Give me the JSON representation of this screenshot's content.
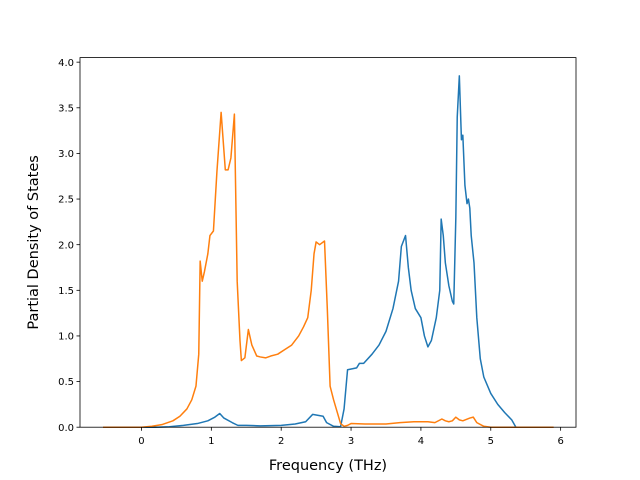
{
  "chart_data": {
    "type": "line",
    "title": "",
    "xlabel": "Frequency (THz)",
    "ylabel": "Partial Density of States",
    "xlim": [
      -0.88,
      6.22
    ],
    "ylim": [
      0.0,
      4.05
    ],
    "xticks": [
      0,
      1,
      2,
      3,
      4,
      5,
      6
    ],
    "yticks": [
      0.0,
      0.5,
      1.0,
      1.5,
      2.0,
      2.5,
      3.0,
      3.5,
      4.0
    ],
    "xtick_labels": [
      "0",
      "1",
      "2",
      "3",
      "4",
      "5",
      "6"
    ],
    "ytick_labels": [
      "0.0",
      "0.5",
      "1.0",
      "1.5",
      "2.0",
      "2.5",
      "3.0",
      "3.5",
      "4.0"
    ],
    "grid": false,
    "legend": false,
    "series": [
      {
        "color": "#1f77b4",
        "points": [
          [
            -0.55,
            0.0
          ],
          [
            0.2,
            0.0
          ],
          [
            0.4,
            0.005
          ],
          [
            0.6,
            0.02
          ],
          [
            0.8,
            0.04
          ],
          [
            0.95,
            0.07
          ],
          [
            1.05,
            0.11
          ],
          [
            1.12,
            0.15
          ],
          [
            1.18,
            0.1
          ],
          [
            1.3,
            0.05
          ],
          [
            1.38,
            0.02
          ],
          [
            1.5,
            0.02
          ],
          [
            1.7,
            0.015
          ],
          [
            2.0,
            0.02
          ],
          [
            2.2,
            0.035
          ],
          [
            2.35,
            0.06
          ],
          [
            2.45,
            0.14
          ],
          [
            2.6,
            0.12
          ],
          [
            2.65,
            0.05
          ],
          [
            2.75,
            0.01
          ],
          [
            2.85,
            0.005
          ],
          [
            2.9,
            0.2
          ],
          [
            2.95,
            0.63
          ],
          [
            3.02,
            0.64
          ],
          [
            3.08,
            0.65
          ],
          [
            3.12,
            0.7
          ],
          [
            3.18,
            0.7
          ],
          [
            3.3,
            0.8
          ],
          [
            3.4,
            0.9
          ],
          [
            3.5,
            1.05
          ],
          [
            3.6,
            1.3
          ],
          [
            3.68,
            1.6
          ],
          [
            3.72,
            1.98
          ],
          [
            3.78,
            2.1
          ],
          [
            3.82,
            1.75
          ],
          [
            3.86,
            1.5
          ],
          [
            3.92,
            1.3
          ],
          [
            4.0,
            1.2
          ],
          [
            4.05,
            1.0
          ],
          [
            4.1,
            0.88
          ],
          [
            4.15,
            0.95
          ],
          [
            4.22,
            1.2
          ],
          [
            4.27,
            1.5
          ],
          [
            4.29,
            2.28
          ],
          [
            4.32,
            2.1
          ],
          [
            4.35,
            1.8
          ],
          [
            4.4,
            1.55
          ],
          [
            4.45,
            1.38
          ],
          [
            4.47,
            1.35
          ],
          [
            4.5,
            2.3
          ],
          [
            4.52,
            3.4
          ],
          [
            4.55,
            3.85
          ],
          [
            4.58,
            3.15
          ],
          [
            4.6,
            3.2
          ],
          [
            4.63,
            2.65
          ],
          [
            4.66,
            2.45
          ],
          [
            4.68,
            2.5
          ],
          [
            4.7,
            2.4
          ],
          [
            4.72,
            2.1
          ],
          [
            4.76,
            1.8
          ],
          [
            4.8,
            1.2
          ],
          [
            4.85,
            0.75
          ],
          [
            4.9,
            0.55
          ],
          [
            5.0,
            0.37
          ],
          [
            5.1,
            0.25
          ],
          [
            5.2,
            0.16
          ],
          [
            5.3,
            0.08
          ],
          [
            5.36,
            0.0
          ],
          [
            5.45,
            0.0
          ]
        ]
      },
      {
        "color": "#ff7f0e",
        "points": [
          [
            -0.55,
            0.0
          ],
          [
            0.0,
            0.0
          ],
          [
            0.15,
            0.01
          ],
          [
            0.3,
            0.03
          ],
          [
            0.45,
            0.07
          ],
          [
            0.55,
            0.12
          ],
          [
            0.65,
            0.2
          ],
          [
            0.72,
            0.3
          ],
          [
            0.78,
            0.45
          ],
          [
            0.82,
            0.8
          ],
          [
            0.84,
            1.82
          ],
          [
            0.87,
            1.6
          ],
          [
            0.9,
            1.7
          ],
          [
            0.95,
            1.9
          ],
          [
            0.98,
            2.1
          ],
          [
            1.03,
            2.15
          ],
          [
            1.08,
            2.8
          ],
          [
            1.14,
            3.45
          ],
          [
            1.2,
            2.82
          ],
          [
            1.24,
            2.82
          ],
          [
            1.28,
            2.95
          ],
          [
            1.33,
            3.43
          ],
          [
            1.37,
            1.6
          ],
          [
            1.41,
            0.95
          ],
          [
            1.43,
            0.73
          ],
          [
            1.48,
            0.76
          ],
          [
            1.53,
            1.07
          ],
          [
            1.58,
            0.9
          ],
          [
            1.65,
            0.78
          ],
          [
            1.7,
            0.77
          ],
          [
            1.78,
            0.76
          ],
          [
            1.85,
            0.78
          ],
          [
            1.95,
            0.8
          ],
          [
            2.05,
            0.85
          ],
          [
            2.15,
            0.9
          ],
          [
            2.25,
            1.0
          ],
          [
            2.32,
            1.1
          ],
          [
            2.38,
            1.2
          ],
          [
            2.43,
            1.5
          ],
          [
            2.47,
            1.9
          ],
          [
            2.5,
            2.03
          ],
          [
            2.55,
            2.0
          ],
          [
            2.62,
            2.04
          ],
          [
            2.66,
            1.3
          ],
          [
            2.7,
            0.45
          ],
          [
            2.75,
            0.3
          ],
          [
            2.8,
            0.17
          ],
          [
            2.85,
            0.04
          ],
          [
            2.9,
            0.01
          ],
          [
            2.95,
            0.02
          ],
          [
            3.0,
            0.04
          ],
          [
            3.2,
            0.035
          ],
          [
            3.5,
            0.035
          ],
          [
            3.7,
            0.05
          ],
          [
            3.9,
            0.06
          ],
          [
            4.1,
            0.06
          ],
          [
            4.2,
            0.05
          ],
          [
            4.3,
            0.09
          ],
          [
            4.35,
            0.07
          ],
          [
            4.4,
            0.06
          ],
          [
            4.45,
            0.07
          ],
          [
            4.5,
            0.11
          ],
          [
            4.55,
            0.08
          ],
          [
            4.6,
            0.07
          ],
          [
            4.7,
            0.1
          ],
          [
            4.75,
            0.11
          ],
          [
            4.8,
            0.05
          ],
          [
            4.9,
            0.01
          ],
          [
            5.0,
            0.0
          ],
          [
            5.9,
            0.0
          ]
        ]
      }
    ]
  }
}
